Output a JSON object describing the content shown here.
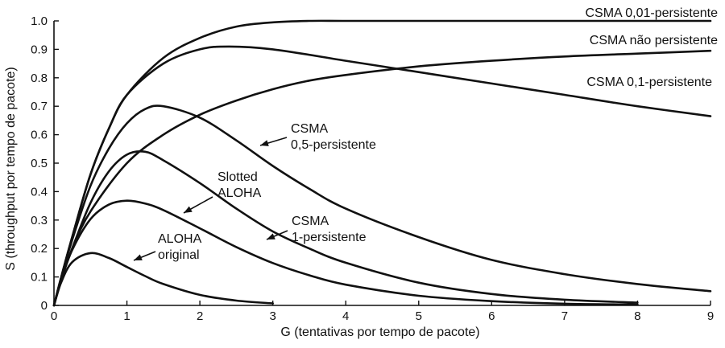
{
  "chart_data": {
    "type": "line",
    "title": "",
    "xlabel": "G (tentativas por tempo de pacote)",
    "ylabel": "S (throughput por tempo de pacote)",
    "xlim": [
      0,
      9
    ],
    "ylim": [
      0,
      1.0
    ],
    "x_ticks": [
      "0",
      "1",
      "2",
      "3",
      "4",
      "5",
      "6",
      "7",
      "8",
      "9"
    ],
    "y_ticks": [
      "0",
      "0.1",
      "0.2",
      "0.3",
      "0.4",
      "0.5",
      "0.6",
      "0.7",
      "0.8",
      "0.9",
      "1.0"
    ],
    "grid": false,
    "series": [
      {
        "name": "CSMA 0,01-persistente",
        "x": [
          0,
          0.1,
          0.25,
          0.5,
          0.75,
          1,
          1.5,
          2,
          2.5,
          3,
          3.5,
          4,
          5,
          6,
          7,
          8,
          9
        ],
        "y": [
          0,
          0.1,
          0.24,
          0.46,
          0.62,
          0.74,
          0.87,
          0.94,
          0.98,
          0.995,
          1.0,
          1.0,
          1.0,
          1.0,
          1.0,
          1.0,
          1.0
        ]
      },
      {
        "name": "CSMA não persistente",
        "x": [
          0,
          0.1,
          0.25,
          0.5,
          1,
          1.5,
          2,
          2.5,
          3,
          3.5,
          4,
          5,
          6,
          7,
          8,
          9
        ],
        "y": [
          0,
          0.09,
          0.2,
          0.33,
          0.5,
          0.6,
          0.67,
          0.72,
          0.76,
          0.79,
          0.81,
          0.84,
          0.86,
          0.875,
          0.885,
          0.895
        ]
      },
      {
        "name": "CSMA 0,1-persistente",
        "x": [
          0,
          0.1,
          0.25,
          0.5,
          0.75,
          1,
          1.5,
          2,
          2.4,
          3,
          4,
          5,
          6,
          7,
          8,
          9
        ],
        "y": [
          0,
          0.1,
          0.24,
          0.46,
          0.62,
          0.74,
          0.85,
          0.9,
          0.91,
          0.9,
          0.86,
          0.82,
          0.78,
          0.74,
          0.7,
          0.665
        ]
      },
      {
        "name": "CSMA 0,5-persistente",
        "x": [
          0,
          0.1,
          0.25,
          0.5,
          0.75,
          1,
          1.25,
          1.5,
          2,
          2.5,
          3,
          3.5,
          4,
          5,
          6,
          7,
          8,
          9
        ],
        "y": [
          0,
          0.1,
          0.23,
          0.42,
          0.55,
          0.64,
          0.69,
          0.7,
          0.66,
          0.58,
          0.49,
          0.41,
          0.34,
          0.24,
          0.16,
          0.11,
          0.075,
          0.05
        ]
      },
      {
        "name": "CSMA 1-persistente",
        "x": [
          0,
          0.1,
          0.25,
          0.5,
          0.75,
          1,
          1.25,
          1.5,
          2,
          2.5,
          3,
          3.5,
          4,
          5,
          6,
          7,
          8
        ],
        "y": [
          0,
          0.09,
          0.2,
          0.36,
          0.47,
          0.53,
          0.54,
          0.51,
          0.43,
          0.34,
          0.26,
          0.2,
          0.15,
          0.08,
          0.04,
          0.02,
          0.01
        ]
      },
      {
        "name": "Slotted ALOHA",
        "x": [
          0,
          0.1,
          0.25,
          0.5,
          0.75,
          1,
          1.25,
          1.5,
          2,
          2.5,
          3,
          3.5,
          4,
          5,
          6,
          7,
          8
        ],
        "y": [
          0,
          0.09,
          0.195,
          0.303,
          0.354,
          0.368,
          0.358,
          0.335,
          0.271,
          0.205,
          0.149,
          0.106,
          0.073,
          0.034,
          0.015,
          0.006,
          0.003
        ]
      },
      {
        "name": "ALOHA original",
        "x": [
          0,
          0.1,
          0.25,
          0.5,
          0.75,
          1,
          1.25,
          1.5,
          2,
          2.5,
          3
        ],
        "y": [
          0,
          0.082,
          0.152,
          0.184,
          0.167,
          0.135,
          0.103,
          0.075,
          0.037,
          0.017,
          0.007
        ]
      }
    ],
    "labels": [
      {
        "series": "CSMA 0,01-persistente",
        "lines": [
          "CSMA 0,01-persistente"
        ]
      },
      {
        "series": "CSMA não persistente",
        "lines": [
          "CSMA não persistente"
        ]
      },
      {
        "series": "CSMA 0,1-persistente",
        "lines": [
          "CSMA 0,1-persistente"
        ]
      },
      {
        "series": "CSMA 0,5-persistente",
        "lines": [
          "CSMA",
          "0,5-persistente"
        ]
      },
      {
        "series": "Slotted ALOHA",
        "lines": [
          "Slotted",
          "ALOHA"
        ]
      },
      {
        "series": "CSMA 1-persistente",
        "lines": [
          "CSMA",
          "1-persistente"
        ]
      },
      {
        "series": "ALOHA original",
        "lines": [
          "ALOHA",
          "original"
        ]
      }
    ]
  }
}
